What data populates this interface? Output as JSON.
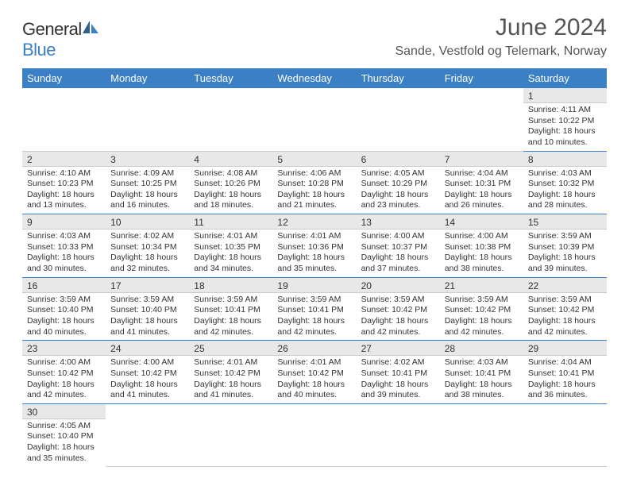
{
  "brand": {
    "name1": "General",
    "name2": "Blue"
  },
  "title": "June 2024",
  "location": "Sande, Vestfold og Telemark, Norway",
  "colors": {
    "accent": "#3b7fc4",
    "text": "#333333",
    "headerText": "#ffffff",
    "dayBg": "#e8e8e8"
  },
  "weekdays": [
    "Sunday",
    "Monday",
    "Tuesday",
    "Wednesday",
    "Thursday",
    "Friday",
    "Saturday"
  ],
  "grid": [
    [
      null,
      null,
      null,
      null,
      null,
      null,
      {
        "n": "1",
        "sr": "4:11 AM",
        "ss": "10:22 PM",
        "dl": "18 hours and 10 minutes."
      }
    ],
    [
      {
        "n": "2",
        "sr": "4:10 AM",
        "ss": "10:23 PM",
        "dl": "18 hours and 13 minutes."
      },
      {
        "n": "3",
        "sr": "4:09 AM",
        "ss": "10:25 PM",
        "dl": "18 hours and 16 minutes."
      },
      {
        "n": "4",
        "sr": "4:08 AM",
        "ss": "10:26 PM",
        "dl": "18 hours and 18 minutes."
      },
      {
        "n": "5",
        "sr": "4:06 AM",
        "ss": "10:28 PM",
        "dl": "18 hours and 21 minutes."
      },
      {
        "n": "6",
        "sr": "4:05 AM",
        "ss": "10:29 PM",
        "dl": "18 hours and 23 minutes."
      },
      {
        "n": "7",
        "sr": "4:04 AM",
        "ss": "10:31 PM",
        "dl": "18 hours and 26 minutes."
      },
      {
        "n": "8",
        "sr": "4:03 AM",
        "ss": "10:32 PM",
        "dl": "18 hours and 28 minutes."
      }
    ],
    [
      {
        "n": "9",
        "sr": "4:03 AM",
        "ss": "10:33 PM",
        "dl": "18 hours and 30 minutes."
      },
      {
        "n": "10",
        "sr": "4:02 AM",
        "ss": "10:34 PM",
        "dl": "18 hours and 32 minutes."
      },
      {
        "n": "11",
        "sr": "4:01 AM",
        "ss": "10:35 PM",
        "dl": "18 hours and 34 minutes."
      },
      {
        "n": "12",
        "sr": "4:01 AM",
        "ss": "10:36 PM",
        "dl": "18 hours and 35 minutes."
      },
      {
        "n": "13",
        "sr": "4:00 AM",
        "ss": "10:37 PM",
        "dl": "18 hours and 37 minutes."
      },
      {
        "n": "14",
        "sr": "4:00 AM",
        "ss": "10:38 PM",
        "dl": "18 hours and 38 minutes."
      },
      {
        "n": "15",
        "sr": "3:59 AM",
        "ss": "10:39 PM",
        "dl": "18 hours and 39 minutes."
      }
    ],
    [
      {
        "n": "16",
        "sr": "3:59 AM",
        "ss": "10:40 PM",
        "dl": "18 hours and 40 minutes."
      },
      {
        "n": "17",
        "sr": "3:59 AM",
        "ss": "10:40 PM",
        "dl": "18 hours and 41 minutes."
      },
      {
        "n": "18",
        "sr": "3:59 AM",
        "ss": "10:41 PM",
        "dl": "18 hours and 42 minutes."
      },
      {
        "n": "19",
        "sr": "3:59 AM",
        "ss": "10:41 PM",
        "dl": "18 hours and 42 minutes."
      },
      {
        "n": "20",
        "sr": "3:59 AM",
        "ss": "10:42 PM",
        "dl": "18 hours and 42 minutes."
      },
      {
        "n": "21",
        "sr": "3:59 AM",
        "ss": "10:42 PM",
        "dl": "18 hours and 42 minutes."
      },
      {
        "n": "22",
        "sr": "3:59 AM",
        "ss": "10:42 PM",
        "dl": "18 hours and 42 minutes."
      }
    ],
    [
      {
        "n": "23",
        "sr": "4:00 AM",
        "ss": "10:42 PM",
        "dl": "18 hours and 42 minutes."
      },
      {
        "n": "24",
        "sr": "4:00 AM",
        "ss": "10:42 PM",
        "dl": "18 hours and 41 minutes."
      },
      {
        "n": "25",
        "sr": "4:01 AM",
        "ss": "10:42 PM",
        "dl": "18 hours and 41 minutes."
      },
      {
        "n": "26",
        "sr": "4:01 AM",
        "ss": "10:42 PM",
        "dl": "18 hours and 40 minutes."
      },
      {
        "n": "27",
        "sr": "4:02 AM",
        "ss": "10:41 PM",
        "dl": "18 hours and 39 minutes."
      },
      {
        "n": "28",
        "sr": "4:03 AM",
        "ss": "10:41 PM",
        "dl": "18 hours and 38 minutes."
      },
      {
        "n": "29",
        "sr": "4:04 AM",
        "ss": "10:41 PM",
        "dl": "18 hours and 36 minutes."
      }
    ],
    [
      {
        "n": "30",
        "sr": "4:05 AM",
        "ss": "10:40 PM",
        "dl": "18 hours and 35 minutes."
      },
      null,
      null,
      null,
      null,
      null,
      null
    ]
  ],
  "labels": {
    "sunrise": "Sunrise: ",
    "sunset": "Sunset: ",
    "daylight": "Daylight: "
  }
}
